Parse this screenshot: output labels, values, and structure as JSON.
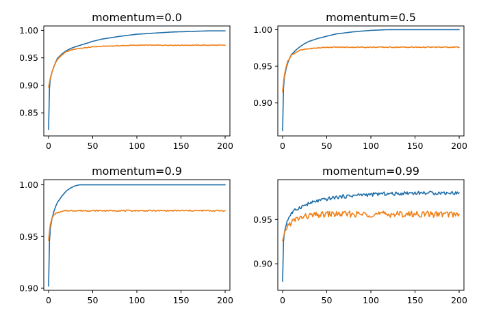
{
  "colors": {
    "train": "#1f6ea8",
    "val": "#f07f14"
  },
  "chart_data": [
    {
      "type": "line",
      "title": "momentum=0.0",
      "xlim": [
        0,
        200
      ],
      "ylim": [
        0.808,
        1.008
      ],
      "xticks": [
        0,
        50,
        100,
        150,
        200
      ],
      "yticks": [
        0.85,
        0.9,
        0.95,
        1.0
      ],
      "ytick_labels": [
        "0.85",
        "0.90",
        "0.95",
        "1.00"
      ],
      "series": [
        {
          "color_key": "train",
          "x": [
            0,
            1,
            2,
            4,
            6,
            8,
            10,
            15,
            20,
            25,
            30,
            40,
            50,
            60,
            80,
            100,
            120,
            140,
            160,
            180,
            200
          ],
          "values": [
            0.82,
            0.895,
            0.912,
            0.925,
            0.934,
            0.942,
            0.949,
            0.957,
            0.963,
            0.967,
            0.97,
            0.975,
            0.98,
            0.984,
            0.989,
            0.993,
            0.995,
            0.997,
            0.998,
            0.999,
            0.999
          ]
        },
        {
          "color_key": "val",
          "x": [
            0,
            1,
            2,
            4,
            6,
            8,
            10,
            15,
            20,
            25,
            30,
            40,
            50,
            60,
            80,
            100,
            120,
            140,
            160,
            180,
            200
          ],
          "values": [
            0.897,
            0.905,
            0.914,
            0.925,
            0.934,
            0.941,
            0.947,
            0.955,
            0.961,
            0.964,
            0.966,
            0.968,
            0.97,
            0.971,
            0.972,
            0.973,
            0.973,
            0.973,
            0.973,
            0.973,
            0.973
          ]
        }
      ]
    },
    {
      "type": "line",
      "title": "momentum=0.5",
      "xlim": [
        0,
        200
      ],
      "ylim": [
        0.855,
        1.005
      ],
      "xticks": [
        0,
        50,
        100,
        150,
        200
      ],
      "yticks": [
        0.9,
        0.95,
        1.0
      ],
      "ytick_labels": [
        "0.90",
        "0.95",
        "1.00"
      ],
      "series": [
        {
          "color_key": "train",
          "x": [
            0,
            1,
            2,
            4,
            6,
            8,
            10,
            15,
            20,
            25,
            30,
            40,
            50,
            60,
            80,
            100,
            120,
            140,
            160,
            180,
            200
          ],
          "values": [
            0.862,
            0.92,
            0.935,
            0.947,
            0.955,
            0.961,
            0.966,
            0.972,
            0.977,
            0.981,
            0.984,
            0.988,
            0.991,
            0.994,
            0.997,
            0.999,
            1.0,
            1.0,
            1.0,
            1.0,
            1.0
          ]
        },
        {
          "color_key": "val",
          "x": [
            0,
            1,
            2,
            4,
            6,
            8,
            10,
            15,
            20,
            25,
            30,
            40,
            50,
            60,
            80,
            100,
            120,
            140,
            160,
            180,
            200
          ],
          "values": [
            0.915,
            0.928,
            0.938,
            0.95,
            0.957,
            0.961,
            0.965,
            0.969,
            0.972,
            0.973,
            0.974,
            0.975,
            0.976,
            0.976,
            0.976,
            0.976,
            0.976,
            0.976,
            0.976,
            0.976,
            0.976
          ]
        }
      ]
    },
    {
      "type": "line",
      "title": "momentum=0.9",
      "xlim": [
        0,
        200
      ],
      "ylim": [
        0.898,
        1.005
      ],
      "xticks": [
        0,
        50,
        100,
        150,
        200
      ],
      "yticks": [
        0.9,
        0.95,
        1.0
      ],
      "ytick_labels": [
        "0.90",
        "0.95",
        "1.00"
      ],
      "series": [
        {
          "color_key": "train",
          "x": [
            0,
            1,
            2,
            4,
            6,
            8,
            10,
            15,
            20,
            25,
            30,
            35,
            40,
            50,
            60,
            80,
            100,
            150,
            200
          ],
          "values": [
            0.902,
            0.945,
            0.958,
            0.968,
            0.974,
            0.979,
            0.983,
            0.989,
            0.994,
            0.997,
            0.999,
            1.0,
            1.0,
            1.0,
            1.0,
            1.0,
            1.0,
            1.0,
            1.0
          ]
        },
        {
          "color_key": "val",
          "x": [
            0,
            1,
            2,
            4,
            6,
            8,
            10,
            15,
            20,
            30,
            40,
            50,
            60,
            80,
            100,
            150,
            200
          ],
          "values": [
            0.946,
            0.955,
            0.962,
            0.968,
            0.971,
            0.972,
            0.973,
            0.974,
            0.975,
            0.975,
            0.975,
            0.975,
            0.975,
            0.975,
            0.975,
            0.975,
            0.975
          ]
        }
      ]
    },
    {
      "type": "line",
      "title": "momentum=0.99",
      "xlim": [
        0,
        200
      ],
      "ylim": [
        0.87,
        0.995
      ],
      "xticks": [
        0,
        50,
        100,
        150,
        200
      ],
      "yticks": [
        0.9,
        0.95
      ],
      "ytick_labels": [
        "0.90",
        "0.95"
      ],
      "series": [
        {
          "color_key": "train",
          "x": [
            0,
            1,
            2,
            4,
            6,
            8,
            10,
            15,
            20,
            25,
            30,
            40,
            50,
            60,
            70,
            80,
            90,
            100,
            110,
            120,
            130,
            140,
            150,
            160,
            170,
            180,
            190,
            200
          ],
          "values": [
            0.88,
            0.925,
            0.935,
            0.945,
            0.95,
            0.954,
            0.957,
            0.961,
            0.964,
            0.966,
            0.968,
            0.971,
            0.973,
            0.975,
            0.976,
            0.977,
            0.978,
            0.978,
            0.979,
            0.979,
            0.979,
            0.98,
            0.98,
            0.98,
            0.98,
            0.98,
            0.98,
            0.98
          ]
        },
        {
          "color_key": "val",
          "x": [
            0,
            1,
            2,
            4,
            6,
            8,
            10,
            15,
            20,
            25,
            30,
            40,
            50,
            60,
            70,
            80,
            90,
            100,
            110,
            120,
            130,
            140,
            150,
            160,
            170,
            180,
            190,
            200
          ],
          "values": [
            0.926,
            0.93,
            0.935,
            0.94,
            0.943,
            0.945,
            0.947,
            0.95,
            0.952,
            0.953,
            0.954,
            0.955,
            0.956,
            0.956,
            0.956,
            0.956,
            0.956,
            0.956,
            0.956,
            0.956,
            0.956,
            0.956,
            0.956,
            0.956,
            0.956,
            0.956,
            0.956,
            0.956
          ]
        }
      ]
    }
  ]
}
